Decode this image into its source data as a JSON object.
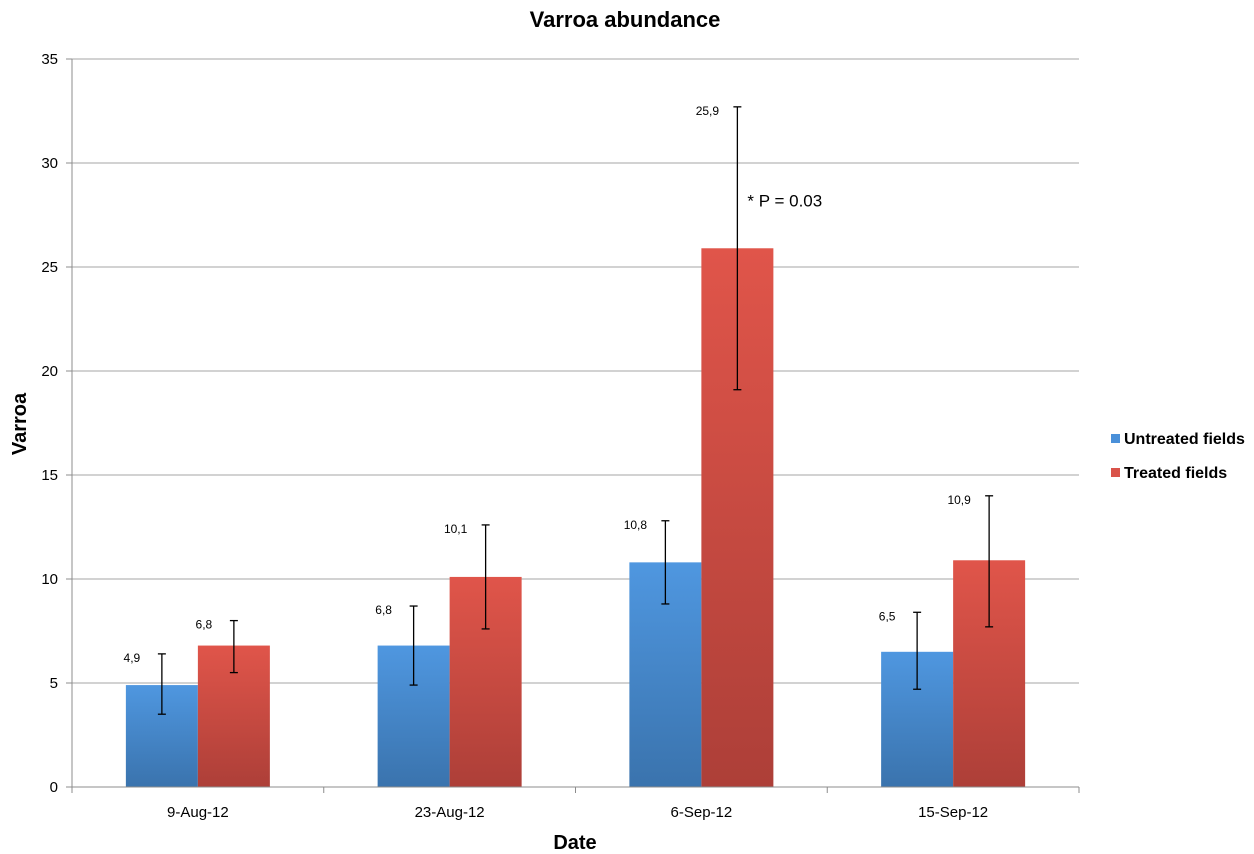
{
  "chart_data": {
    "type": "bar",
    "title": "Varroa abundance",
    "xlabel": "Date",
    "ylabel": "Varroa",
    "categories": [
      "9-Aug-12",
      "23-Aug-12",
      "6-Sep-12",
      "15-Sep-12"
    ],
    "ylim": [
      0,
      35
    ],
    "yticks": [
      "0",
      "5",
      "10",
      "15",
      "20",
      "25",
      "30",
      "35"
    ],
    "grid": true,
    "legend_position": "right",
    "series": [
      {
        "name": "Untreated fields",
        "color": "#4a90d9",
        "values": [
          4.9,
          6.8,
          10.8,
          6.5
        ],
        "value_labels": [
          "4,9",
          "6,8",
          "10,8",
          "6,5"
        ],
        "error_low": [
          3.5,
          4.9,
          8.8,
          4.7
        ],
        "error_high": [
          6.4,
          8.7,
          12.8,
          8.4
        ]
      },
      {
        "name": "Treated fields",
        "color": "#d9534a",
        "values": [
          6.8,
          10.1,
          25.9,
          10.9
        ],
        "value_labels": [
          "6,8",
          "10,1",
          "25,9",
          "10,9"
        ],
        "error_low": [
          5.5,
          7.6,
          19.1,
          7.7
        ],
        "error_high": [
          8.0,
          12.6,
          32.7,
          14.0
        ]
      }
    ],
    "annotations": [
      {
        "text": "* P = 0.03",
        "category": "6-Sep-12",
        "series": "Treated fields",
        "y": 27.9
      }
    ]
  }
}
